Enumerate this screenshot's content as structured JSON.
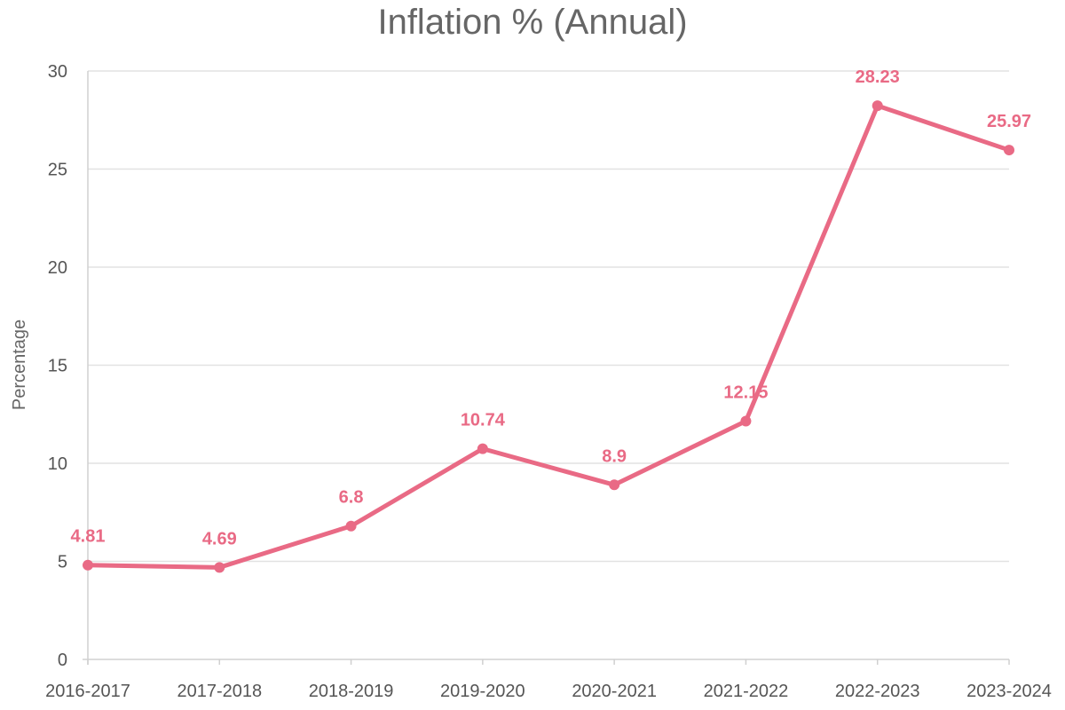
{
  "chart_data": {
    "type": "line",
    "title": "Inflation % (Annual)",
    "xlabel": "",
    "ylabel": "Percentage",
    "categories": [
      "2016-2017",
      "2017-2018",
      "2018-2019",
      "2019-2020",
      "2020-2021",
      "2021-2022",
      "2022-2023",
      "2023-2024"
    ],
    "series": [
      {
        "values": [
          4.81,
          4.69,
          6.8,
          10.74,
          8.9,
          12.15,
          28.23,
          25.97
        ],
        "labels": [
          "4.81",
          "4.69",
          "6.8",
          "10.74",
          "8.9",
          "12.15",
          "28.23",
          "25.97"
        ],
        "color": "#e96a85"
      }
    ],
    "ylim": [
      0,
      30
    ],
    "yticks": [
      0,
      5,
      10,
      15,
      20,
      25,
      30
    ],
    "grid": true,
    "legend": "none"
  }
}
